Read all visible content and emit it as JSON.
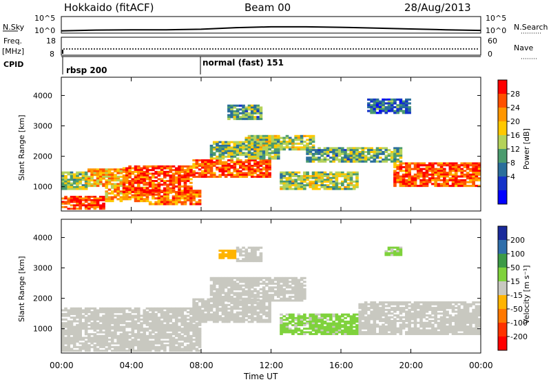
{
  "header": {
    "station": "Hokkaido (fitACF)",
    "beam": "Beam 00",
    "date": "28/Aug/2013"
  },
  "noise_panel": {
    "left_label": "N.Sky",
    "right_label": "N.Search",
    "y_ticks": [
      "10^5",
      "10^0"
    ]
  },
  "freq_panel": {
    "left_label_top": "Freq.",
    "left_label_bottom": "[MHz]",
    "right_label": "Nave",
    "left_ticks": [
      "18",
      "8"
    ],
    "right_ticks": [
      "60",
      "0"
    ]
  },
  "cpid_panel": {
    "label": "CPID",
    "segments": [
      {
        "name": "rbsp 200",
        "start_hour": 0
      },
      {
        "name": "normal (fast) 151",
        "start_hour": 8
      }
    ]
  },
  "power_panel": {
    "ylabel": "Slant Range [km]",
    "colorbar_label": "Power [dB]",
    "colorbar_ticks": [
      "28",
      "24",
      "20",
      "16",
      "12",
      "8",
      "4"
    ],
    "colorbar_colors": [
      "#ff0000",
      "#ff5000",
      "#ff9600",
      "#ffc800",
      "#b4d25a",
      "#4b9b6e",
      "#2a6e9b",
      "#1432c8",
      "#0000ff"
    ]
  },
  "velocity_panel": {
    "ylabel": "Slant Range [km]",
    "colorbar_label": "Velocity [m s⁻¹]",
    "colorbar_ticks": [
      "200",
      "100",
      "50",
      "15",
      "-15",
      "-50",
      "-100",
      "-200"
    ],
    "colorbar_colors": [
      "#1a2a9b",
      "#2f6eaa",
      "#3c9a46",
      "#7fd23c",
      "#c8c8c0",
      "#ffb400",
      "#ff7800",
      "#ff3200",
      "#ff0000"
    ]
  },
  "x_axis": {
    "label": "Time UT",
    "ticks": [
      "00:00",
      "04:00",
      "08:00",
      "12:00",
      "16:00",
      "20:00",
      "00:00"
    ]
  },
  "chart_data": [
    {
      "type": "line",
      "title": "N.Sky / N.Search",
      "xlabel": "",
      "ylabel": "",
      "yscale": "log",
      "ylim": [
        1,
        100000
      ],
      "x": [
        0,
        2,
        4,
        6,
        8,
        10,
        12,
        14,
        16,
        18,
        20,
        22,
        24
      ],
      "series": [
        {
          "name": "N.Sky",
          "values": [
            2,
            4,
            5,
            5,
            8,
            30,
            60,
            60,
            40,
            20,
            10,
            5,
            3
          ]
        }
      ]
    },
    {
      "type": "scatter",
      "title": "Freq. / Nave",
      "xlabel": "",
      "ylabel": "Freq. [MHz]",
      "ylim": [
        8,
        18
      ],
      "series": [
        {
          "name": "Freq.",
          "values": [
            10.5,
            10.5,
            10.5,
            10.5,
            10.5,
            10.5,
            10.5,
            10.5,
            10.5,
            10.5,
            10.5,
            10.5,
            10.5
          ]
        },
        {
          "name": "Nave",
          "values": [
            40,
            40,
            40,
            40,
            40,
            40,
            40,
            40,
            40,
            40,
            40,
            40,
            40
          ]
        }
      ]
    },
    {
      "type": "heatmap",
      "title": "",
      "xlabel": "",
      "ylabel": "Slant Range [km]",
      "xlim": [
        0,
        24
      ],
      "ylim": [
        200,
        4600
      ],
      "yticks": [
        1000,
        2000,
        3000,
        4000
      ],
      "color_scale": "Power [dB]",
      "clim": [
        0,
        32
      ],
      "regions": [
        {
          "t0": 0.0,
          "t1": 2.5,
          "r0": 250,
          "r1": 700,
          "value": 30
        },
        {
          "t0": 0.0,
          "t1": 1.5,
          "r0": 900,
          "r1": 1500,
          "value": 16
        },
        {
          "t0": 1.5,
          "t1": 3.5,
          "r0": 1000,
          "r1": 1600,
          "value": 22
        },
        {
          "t0": 2.5,
          "t1": 5.0,
          "r0": 500,
          "r1": 1000,
          "value": 24
        },
        {
          "t0": 3.5,
          "t1": 7.5,
          "r0": 800,
          "r1": 1700,
          "value": 28
        },
        {
          "t0": 5.0,
          "t1": 8.0,
          "r0": 400,
          "r1": 900,
          "value": 26
        },
        {
          "t0": 7.5,
          "t1": 12.0,
          "r0": 1300,
          "r1": 1900,
          "value": 28
        },
        {
          "t0": 8.5,
          "t1": 12.5,
          "r0": 1900,
          "r1": 2500,
          "value": 14
        },
        {
          "t0": 10.5,
          "t1": 14.5,
          "r0": 2200,
          "r1": 2700,
          "value": 16
        },
        {
          "t0": 12.5,
          "t1": 17.0,
          "r0": 900,
          "r1": 1500,
          "value": 16
        },
        {
          "t0": 14.0,
          "t1": 17.0,
          "r0": 1800,
          "r1": 2300,
          "value": 12
        },
        {
          "t0": 16.5,
          "t1": 19.5,
          "r0": 1800,
          "r1": 2300,
          "value": 14
        },
        {
          "t0": 19.0,
          "t1": 24.0,
          "r0": 1000,
          "r1": 1800,
          "value": 28
        },
        {
          "t0": 9.5,
          "t1": 11.5,
          "r0": 3200,
          "r1": 3700,
          "value": 12
        },
        {
          "t0": 17.5,
          "t1": 20.0,
          "r0": 3400,
          "r1": 3900,
          "value": 8
        }
      ]
    },
    {
      "type": "heatmap",
      "title": "",
      "xlabel": "Time UT",
      "ylabel": "Slant Range [km]",
      "xlim": [
        0,
        24
      ],
      "ylim": [
        200,
        4600
      ],
      "yticks": [
        1000,
        2000,
        3000,
        4000
      ],
      "color_scale": "Velocity [m s⁻¹]",
      "clim": [
        -200,
        200
      ],
      "regions": [
        {
          "t0": 0.0,
          "t1": 8.0,
          "r0": 250,
          "r1": 1700,
          "value": 0
        },
        {
          "t0": 7.5,
          "t1": 12.0,
          "r0": 1200,
          "r1": 2000,
          "value": 0
        },
        {
          "t0": 8.5,
          "t1": 14.0,
          "r0": 1900,
          "r1": 2700,
          "value": 0
        },
        {
          "t0": 12.5,
          "t1": 17.0,
          "r0": 800,
          "r1": 1500,
          "value": 30
        },
        {
          "t0": 17.0,
          "t1": 24.0,
          "r0": 800,
          "r1": 1900,
          "value": 0
        },
        {
          "t0": 10.0,
          "t1": 11.5,
          "r0": 3200,
          "r1": 3700,
          "value": 0
        },
        {
          "t0": 9.0,
          "t1": 10.0,
          "r0": 3300,
          "r1": 3600,
          "value": -60
        },
        {
          "t0": 18.5,
          "t1": 19.5,
          "r0": 3400,
          "r1": 3700,
          "value": 30
        }
      ]
    }
  ]
}
